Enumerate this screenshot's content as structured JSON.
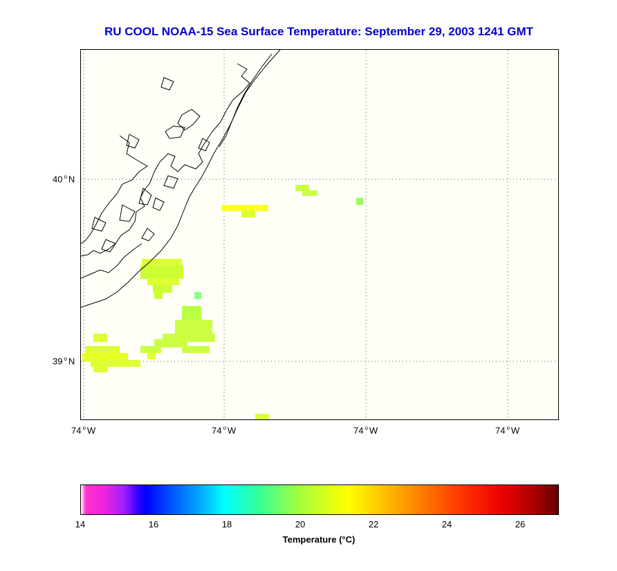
{
  "title": "RU COOL  NOAA-15  Sea Surface Temperature:  September 29, 2003 1241 GMT",
  "map": {
    "lat_labels": [
      {
        "num": "40",
        "hemi": "N"
      },
      {
        "num": "39",
        "hemi": "N"
      }
    ],
    "lon_labels": [
      {
        "num": "74",
        "hemi": "W"
      },
      {
        "num": "74",
        "hemi": "W"
      },
      {
        "num": "74",
        "hemi": "W"
      },
      {
        "num": "74",
        "hemi": "W"
      }
    ]
  },
  "colorbar": {
    "ticks": [
      "14",
      "16",
      "18",
      "20",
      "22",
      "24",
      "26"
    ],
    "label": "Temperature (°C)",
    "range": [
      14,
      27
    ]
  },
  "colors": {
    "title": "#0000cc",
    "sst_yellow": "#e8ff30",
    "sst_yellowgreen": "#ccff33",
    "sst_green": "#99ff66",
    "land_fill": "#fffff8"
  }
}
